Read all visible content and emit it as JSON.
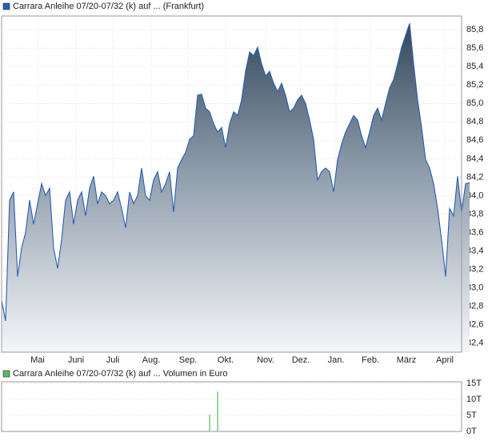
{
  "chart_data": [
    {
      "type": "area",
      "series": [
        {
          "name": "Carrara Anleihe 07/20-07/32 (k) auf ... (Frankfurt)",
          "color": "#2a5db0",
          "values": [
            82.86,
            82.64,
            83.95,
            84.04,
            83.12,
            83.43,
            83.6,
            83.95,
            83.69,
            83.91,
            84.13,
            84.0,
            84.08,
            83.43,
            83.21,
            83.52,
            83.95,
            84.04,
            83.69,
            83.95,
            84.04,
            83.78,
            84.08,
            84.21,
            83.91,
            84.04,
            84.0,
            83.91,
            83.95,
            84.04,
            83.86,
            83.65,
            84.04,
            83.91,
            84.0,
            84.3,
            84.0,
            83.95,
            84.17,
            84.26,
            84.04,
            84.13,
            84.26,
            83.82,
            84.3,
            84.39,
            84.47,
            84.61,
            84.65,
            85.09,
            85.1,
            84.95,
            84.91,
            84.78,
            84.69,
            84.74,
            84.52,
            84.78,
            84.91,
            84.87,
            85.04,
            85.35,
            85.56,
            85.52,
            85.61,
            85.43,
            85.3,
            85.35,
            85.22,
            85.13,
            85.22,
            85.09,
            84.91,
            84.95,
            85.04,
            85.09,
            85.0,
            84.82,
            84.61,
            84.17,
            84.26,
            84.3,
            84.26,
            84.04,
            84.39,
            84.56,
            84.69,
            84.78,
            84.87,
            84.82,
            84.65,
            84.52,
            84.69,
            84.87,
            84.95,
            84.82,
            85.0,
            85.17,
            85.26,
            85.43,
            85.61,
            85.74,
            85.87,
            85.43,
            85.04,
            84.74,
            84.39,
            84.3,
            84.13,
            83.86,
            83.52,
            83.12,
            83.86,
            83.78,
            84.21,
            83.82,
            84.13,
            84.14
          ]
        }
      ],
      "xlim": [
        0,
        115
      ],
      "xticks": [
        {
          "value": 9,
          "label": "Mai"
        },
        {
          "value": 18.6,
          "label": "Juni"
        },
        {
          "value": 27.8,
          "label": "Juli"
        },
        {
          "value": 37.4,
          "label": "Aug."
        },
        {
          "value": 46.6,
          "label": "Sep."
        },
        {
          "value": 56,
          "label": "Okt."
        },
        {
          "value": 66,
          "label": "Nov."
        },
        {
          "value": 74.8,
          "label": "Dez."
        },
        {
          "value": 83.6,
          "label": "Jan."
        },
        {
          "value": 92.2,
          "label": "Feb."
        },
        {
          "value": 101.2,
          "label": "März"
        },
        {
          "value": 110.8,
          "label": "April"
        }
      ],
      "ylim": [
        82.3,
        85.95
      ],
      "yticks": [
        {
          "value": 82.4,
          "label": "82,4"
        },
        {
          "value": 82.6,
          "label": "82,6"
        },
        {
          "value": 82.8,
          "label": "82,8"
        },
        {
          "value": 83.0,
          "label": "83,0"
        },
        {
          "value": 83.2,
          "label": "83,2"
        },
        {
          "value": 83.4,
          "label": "83,4"
        },
        {
          "value": 83.6,
          "label": "83,6"
        },
        {
          "value": 83.8,
          "label": "83,8"
        },
        {
          "value": 84.0,
          "label": "84,0"
        },
        {
          "value": 84.2,
          "label": "84,2"
        },
        {
          "value": 84.4,
          "label": "84,4"
        },
        {
          "value": 84.6,
          "label": "84,6"
        },
        {
          "value": 84.8,
          "label": "84,8"
        },
        {
          "value": 85.0,
          "label": "85,0"
        },
        {
          "value": 85.2,
          "label": "85,2"
        },
        {
          "value": 85.4,
          "label": "85,4"
        },
        {
          "value": 85.6,
          "label": "85,6"
        },
        {
          "value": 85.8,
          "label": "85,8"
        }
      ],
      "grid": true
    },
    {
      "type": "bar",
      "series": [
        {
          "name": "Carrara Anleihe 07/20-07/32 (k) auf ... Volumen in Euro",
          "color": "#5cb85c",
          "x": [
            52,
            54
          ],
          "values": [
            5.2,
            12.4
          ]
        }
      ],
      "xlim": [
        0,
        115
      ],
      "ylim": [
        0,
        15.5
      ],
      "yticks": [
        {
          "value": 0,
          "label": "0T"
        },
        {
          "value": 5,
          "label": "5T"
        },
        {
          "value": 10,
          "label": "10T"
        },
        {
          "value": 15,
          "label": "15T"
        }
      ],
      "grid": true
    }
  ]
}
